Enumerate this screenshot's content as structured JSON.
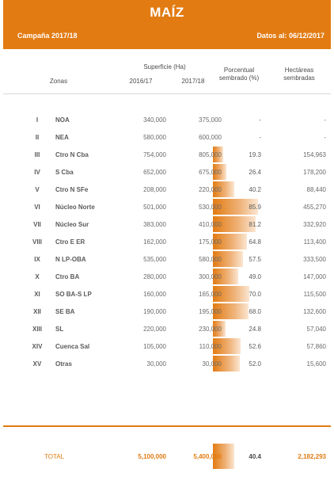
{
  "header": {
    "title": "MAÍZ",
    "campaign": "Campaña 2017/18",
    "date": "Datos al: 06/12/2017"
  },
  "columns": {
    "zonas": "Zonas",
    "superficie": "Superficie (Ha)",
    "year1": "2016/17",
    "year2": "2017/18",
    "porcentual": "Porcentual sembrado (%)",
    "hectareas": "Hectáreas sembradas"
  },
  "accent_color": "#e27b12",
  "rows": [
    {
      "num": "I",
      "zone": "NOA",
      "s1": "340,000",
      "s2": "375,000",
      "pct": "-",
      "pct_value": 0,
      "ha": "-"
    },
    {
      "num": "II",
      "zone": "NEA",
      "s1": "580,000",
      "s2": "600,000",
      "pct": "-",
      "pct_value": 0,
      "ha": "-"
    },
    {
      "num": "III",
      "zone": "Ctro N Cba",
      "s1": "754,000",
      "s2": "805,000",
      "pct": "19.3",
      "pct_value": 19.3,
      "ha": "154,963"
    },
    {
      "num": "IV",
      "zone": "S Cba",
      "s1": "652,000",
      "s2": "675,000",
      "pct": "26.4",
      "pct_value": 26.4,
      "ha": "178,200"
    },
    {
      "num": "V",
      "zone": "Ctro N SFe",
      "s1": "208,000",
      "s2": "220,000",
      "pct": "40.2",
      "pct_value": 40.2,
      "ha": "88,440"
    },
    {
      "num": "VI",
      "zone": "Núcleo Norte",
      "s1": "501,000",
      "s2": "530,000",
      "pct": "85.9",
      "pct_value": 85.9,
      "ha": "455,270"
    },
    {
      "num": "VII",
      "zone": "Núcleo Sur",
      "s1": "383,000",
      "s2": "410,000",
      "pct": "81.2",
      "pct_value": 81.2,
      "ha": "332,920"
    },
    {
      "num": "VIII",
      "zone": "Ctro E ER",
      "s1": "162,000",
      "s2": "175,000",
      "pct": "64.8",
      "pct_value": 64.8,
      "ha": "113,400"
    },
    {
      "num": "IX",
      "zone": "N LP-OBA",
      "s1": "535,000",
      "s2": "580,000",
      "pct": "57.5",
      "pct_value": 57.5,
      "ha": "333,500"
    },
    {
      "num": "X",
      "zone": "Ctro BA",
      "s1": "280,000",
      "s2": "300,000",
      "pct": "49.0",
      "pct_value": 49.0,
      "ha": "147,000"
    },
    {
      "num": "XI",
      "zone": "SO BA-S LP",
      "s1": "160,000",
      "s2": "165,000",
      "pct": "70.0",
      "pct_value": 70.0,
      "ha": "115,500"
    },
    {
      "num": "XII",
      "zone": "SE BA",
      "s1": "190,000",
      "s2": "195,000",
      "pct": "68.0",
      "pct_value": 68.0,
      "ha": "132,600"
    },
    {
      "num": "XIII",
      "zone": "SL",
      "s1": "220,000",
      "s2": "230,000",
      "pct": "24.8",
      "pct_value": 24.8,
      "ha": "57,040"
    },
    {
      "num": "XIV",
      "zone": "Cuenca Sal",
      "s1": "105,000",
      "s2": "110,000",
      "pct": "52.6",
      "pct_value": 52.6,
      "ha": "57,860"
    },
    {
      "num": "XV",
      "zone": "Otras",
      "s1": "30,000",
      "s2": "30,000",
      "pct": "52.0",
      "pct_value": 52.0,
      "ha": "15,600"
    }
  ],
  "total": {
    "label": "TOTAL",
    "s1": "5,100,000",
    "s2": "5,400,000",
    "pct": "40.4",
    "pct_value": 40.4,
    "ha": "2,182,293"
  }
}
